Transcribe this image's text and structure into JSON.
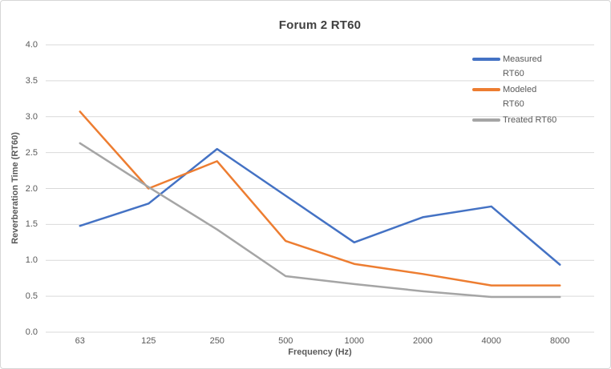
{
  "chart_data": {
    "type": "line",
    "title": "Forum 2 RT60",
    "xlabel": "Frequency (Hz)",
    "ylabel": "Reverberation Time (RT60)",
    "categories": [
      "63",
      "125",
      "250",
      "500",
      "1000",
      "2000",
      "4000",
      "8000"
    ],
    "series": [
      {
        "name": "Measured RT60",
        "legend_lines": [
          "Measured",
          "RT60"
        ],
        "color": "#4472C4",
        "values": [
          1.48,
          1.79,
          2.55,
          1.9,
          1.25,
          1.6,
          1.75,
          0.94
        ]
      },
      {
        "name": "Modeled RT60",
        "legend_lines": [
          "Modeled",
          "RT60"
        ],
        "color": "#ED7D31",
        "values": [
          3.07,
          2.0,
          2.38,
          1.27,
          0.95,
          0.81,
          0.65,
          0.65
        ]
      },
      {
        "name": "Treated RT60",
        "legend_lines": [
          "Treated RT60"
        ],
        "color": "#A5A5A5",
        "values": [
          2.63,
          2.02,
          1.43,
          0.78,
          0.67,
          0.57,
          0.49,
          0.49
        ]
      }
    ],
    "ylim": [
      0.0,
      4.0
    ],
    "ytick_labels": [
      "4.0",
      "3.5",
      "3.0",
      "2.5",
      "2.0",
      "1.5",
      "1.0",
      "0.5",
      "0.0"
    ],
    "grid": true,
    "legend_position": "inside-top-right",
    "style": {
      "gridline_color": "#D9D9D9",
      "axis_text_color": "#595959",
      "title_color": "#404040",
      "background": "#FFFFFF"
    }
  }
}
